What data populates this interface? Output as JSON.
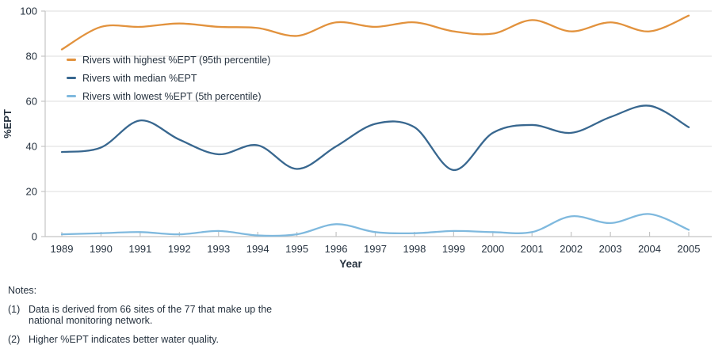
{
  "chart_data": {
    "type": "line",
    "title": "",
    "xlabel": "Year",
    "ylabel": "%EPT",
    "x": [
      1989,
      1990,
      1991,
      1992,
      1993,
      1994,
      1995,
      1996,
      1997,
      1998,
      1999,
      2000,
      2001,
      2002,
      2003,
      2004,
      2005
    ],
    "ylim": [
      0,
      100
    ],
    "yticks": [
      0,
      20,
      40,
      60,
      80,
      100
    ],
    "grid": "horizontal",
    "legend_position": "top-left-inside",
    "series": [
      {
        "name": "Rivers with highest %EPT (95th percentile)",
        "color": "#e2923d",
        "values": [
          83,
          93,
          93,
          94.5,
          93,
          92.5,
          89,
          95,
          93,
          95,
          91,
          90,
          96,
          91,
          95,
          91,
          98
        ]
      },
      {
        "name": "Rivers with median %EPT",
        "color": "#38678f",
        "values": [
          37.5,
          39.5,
          51.5,
          43,
          36.5,
          40.5,
          30,
          40,
          50,
          48.5,
          29.5,
          46,
          49.5,
          46,
          53,
          58,
          48.5
        ]
      },
      {
        "name": "Rivers with lowest %EPT (5th percentile)",
        "color": "#7fb9de",
        "values": [
          1,
          1.5,
          2,
          1,
          2.5,
          0.5,
          1,
          5.5,
          2,
          1.5,
          2.5,
          2,
          2,
          9,
          6,
          10,
          3
        ]
      }
    ],
    "colors": {
      "grid": "#dddddd",
      "axis": "#c4c4c4",
      "text": "#26323f"
    }
  },
  "notes": {
    "title": "Notes:",
    "items": [
      {
        "num": "(1)",
        "text": "Data is derived from 66 sites of the 77 that make up the national monitoring network."
      },
      {
        "num": "(2)",
        "text": "Higher %EPT indicates better water quality."
      }
    ]
  }
}
